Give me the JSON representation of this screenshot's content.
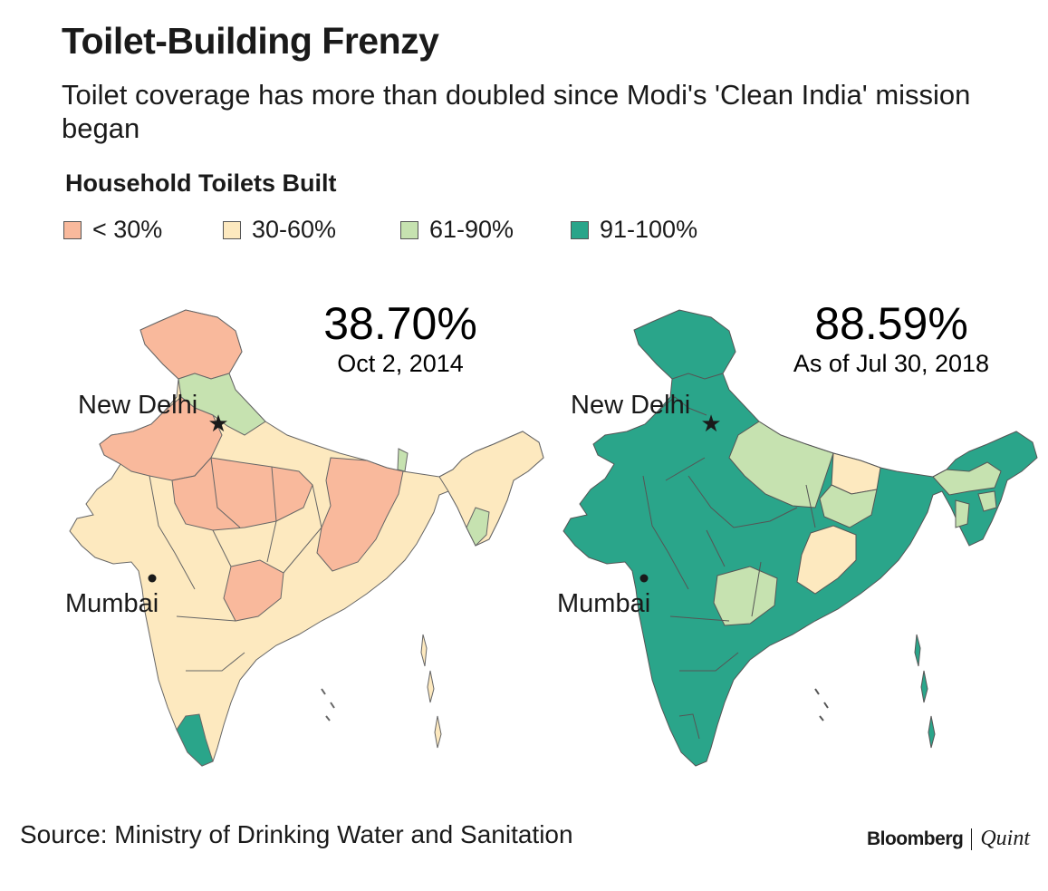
{
  "title": "Toilet-Building Frenzy",
  "subtitle": "Toilet coverage has more than doubled since Modi's 'Clean India' mission began",
  "legend": {
    "title": "Household Toilets Built",
    "items": [
      {
        "label": "< 30%",
        "color": "#f9b99c"
      },
      {
        "label": "30-60%",
        "color": "#fde9bf"
      },
      {
        "label": "61-90%",
        "color": "#c6e2b0"
      },
      {
        "label": "91-100%",
        "color": "#2aa58a"
      }
    ]
  },
  "maps": [
    {
      "value": "38.70%",
      "date": "Oct 2, 2014",
      "capital": "New Delhi",
      "city": "Mumbai"
    },
    {
      "value": "88.59%",
      "date": "As of Jul 30, 2018",
      "capital": "New Delhi",
      "city": "Mumbai"
    }
  ],
  "source": "Source: Ministry of Drinking Water and Sanitation",
  "brand": {
    "name1": "Bloomberg",
    "name2": "Quint"
  }
}
